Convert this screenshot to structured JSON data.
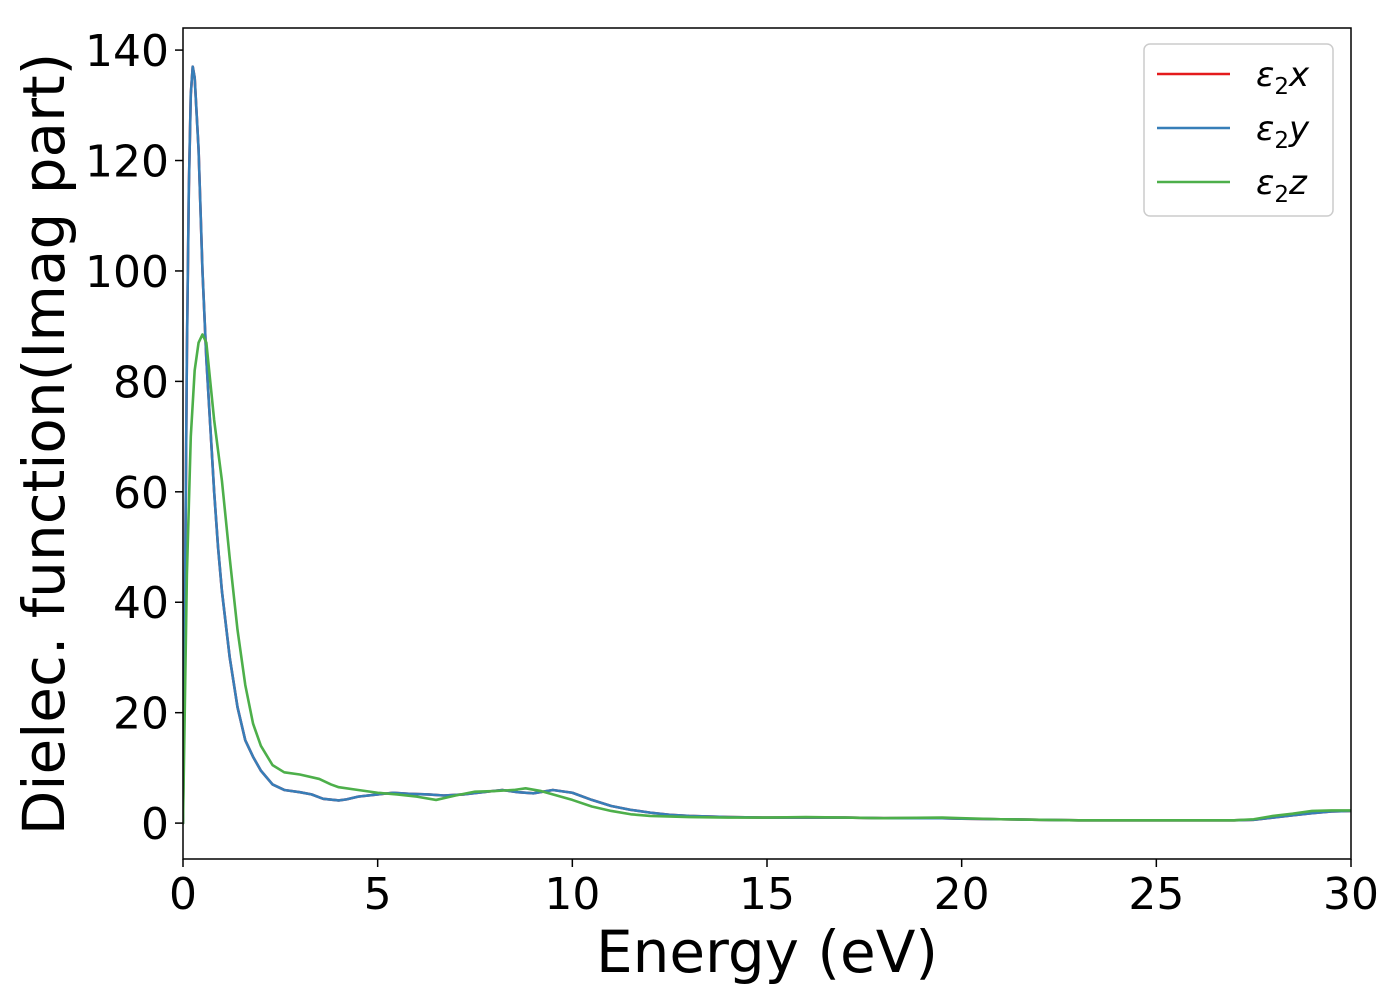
{
  "chart_data": {
    "type": "line",
    "xlabel": "Energy (eV)",
    "ylabel": "Dielec. function(Imag part)",
    "xlim": [
      0,
      30
    ],
    "ylim": [
      -6.5,
      144
    ],
    "xticks": [
      0,
      5,
      10,
      15,
      20,
      25,
      30
    ],
    "yticks": [
      0,
      20,
      40,
      60,
      80,
      100,
      120,
      140
    ],
    "grid": false,
    "legend_position": "top-right",
    "series": [
      {
        "name": "ε2x",
        "label_base": "ε",
        "label_sub": "2",
        "label_axis": "x",
        "color": "#e41a1c",
        "x": [
          0,
          0.05,
          0.1,
          0.15,
          0.2,
          0.25,
          0.3,
          0.4,
          0.5,
          0.6,
          0.7,
          0.8,
          0.9,
          1.0,
          1.2,
          1.4,
          1.6,
          1.8,
          2.0,
          2.3,
          2.6,
          3.0,
          3.3,
          3.6,
          4.0,
          4.2,
          4.5,
          5.0,
          5.4,
          5.8,
          6.3,
          6.7,
          7.2,
          7.7,
          8.2,
          8.6,
          9.0,
          9.5,
          10.0,
          10.5,
          11.0,
          11.5,
          12.0,
          12.5,
          13.0,
          14.0,
          15.0,
          16.0,
          17.0,
          18.0,
          19.5,
          20.0,
          21.0,
          22.0,
          23.0,
          24.0,
          25.0,
          26.0,
          27.0,
          27.5,
          28.0,
          28.5,
          29.0,
          29.5,
          30.0
        ],
        "y": [
          0,
          40,
          85,
          115,
          132,
          137,
          135,
          122,
          100,
          84,
          72,
          60,
          50,
          42,
          30,
          21,
          15,
          12,
          9.5,
          7,
          6,
          5.6,
          5.2,
          4.4,
          4.1,
          4.3,
          4.8,
          5.2,
          5.5,
          5.3,
          5.2,
          5.0,
          5.2,
          5.6,
          6.0,
          5.6,
          5.4,
          6.0,
          5.5,
          4.2,
          3.1,
          2.4,
          1.9,
          1.5,
          1.3,
          1.1,
          1.0,
          1.0,
          1.0,
          0.9,
          0.9,
          0.8,
          0.7,
          0.6,
          0.5,
          0.5,
          0.5,
          0.5,
          0.5,
          0.6,
          1.0,
          1.4,
          1.8,
          2.1,
          2.2
        ]
      },
      {
        "name": "ε2y",
        "label_base": "ε",
        "label_sub": "2",
        "label_axis": "y",
        "color": "#377eb8",
        "x": [
          0,
          0.05,
          0.1,
          0.15,
          0.2,
          0.25,
          0.3,
          0.4,
          0.5,
          0.6,
          0.7,
          0.8,
          0.9,
          1.0,
          1.2,
          1.4,
          1.6,
          1.8,
          2.0,
          2.3,
          2.6,
          3.0,
          3.3,
          3.6,
          4.0,
          4.2,
          4.5,
          5.0,
          5.4,
          5.8,
          6.3,
          6.7,
          7.2,
          7.7,
          8.2,
          8.6,
          9.0,
          9.5,
          10.0,
          10.5,
          11.0,
          11.5,
          12.0,
          12.5,
          13.0,
          14.0,
          15.0,
          16.0,
          17.0,
          18.0,
          19.5,
          20.0,
          21.0,
          22.0,
          23.0,
          24.0,
          25.0,
          26.0,
          27.0,
          27.5,
          28.0,
          28.5,
          29.0,
          29.5,
          30.0
        ],
        "y": [
          0,
          40,
          85,
          115,
          132,
          137,
          135,
          122,
          100,
          84,
          72,
          60,
          50,
          42,
          30,
          21,
          15,
          12,
          9.5,
          7,
          6,
          5.6,
          5.2,
          4.4,
          4.1,
          4.3,
          4.8,
          5.2,
          5.5,
          5.3,
          5.2,
          5.0,
          5.2,
          5.6,
          6.0,
          5.6,
          5.4,
          6.0,
          5.5,
          4.2,
          3.1,
          2.4,
          1.9,
          1.5,
          1.3,
          1.1,
          1.0,
          1.0,
          1.0,
          0.9,
          0.9,
          0.8,
          0.7,
          0.6,
          0.5,
          0.5,
          0.5,
          0.5,
          0.5,
          0.6,
          1.0,
          1.4,
          1.8,
          2.1,
          2.2
        ]
      },
      {
        "name": "ε2z",
        "label_base": "ε",
        "label_sub": "2",
        "label_axis": "z",
        "color": "#4daf4a",
        "x": [
          0,
          0.1,
          0.2,
          0.3,
          0.4,
          0.5,
          0.6,
          0.7,
          0.8,
          1.0,
          1.2,
          1.4,
          1.6,
          1.8,
          2.0,
          2.3,
          2.6,
          3.0,
          3.5,
          3.8,
          4.0,
          4.5,
          5.0,
          5.5,
          6.0,
          6.5,
          7.0,
          7.5,
          8.0,
          8.5,
          8.8,
          9.2,
          9.6,
          10.0,
          10.5,
          11.0,
          11.5,
          12.0,
          13.0,
          14.0,
          15.0,
          16.0,
          17.0,
          18.0,
          19.5,
          20.0,
          21.0,
          22.0,
          23.0,
          24.0,
          25.0,
          26.0,
          27.0,
          27.5,
          28.0,
          28.5,
          29.0,
          29.5,
          30.0
        ],
        "y": [
          0,
          45,
          70,
          82,
          87,
          88.5,
          87,
          80,
          73,
          62,
          48,
          35,
          25,
          18,
          14,
          10.5,
          9.2,
          8.8,
          8.0,
          7.0,
          6.5,
          6.0,
          5.5,
          5.2,
          4.8,
          4.2,
          5.0,
          5.7,
          5.8,
          6.0,
          6.3,
          5.8,
          5.0,
          4.2,
          3.0,
          2.2,
          1.6,
          1.3,
          1.1,
          1.0,
          1.0,
          1.1,
          1.0,
          0.9,
          1.0,
          0.9,
          0.7,
          0.6,
          0.5,
          0.5,
          0.5,
          0.5,
          0.5,
          0.7,
          1.3,
          1.7,
          2.2,
          2.3,
          2.3
        ]
      }
    ]
  }
}
